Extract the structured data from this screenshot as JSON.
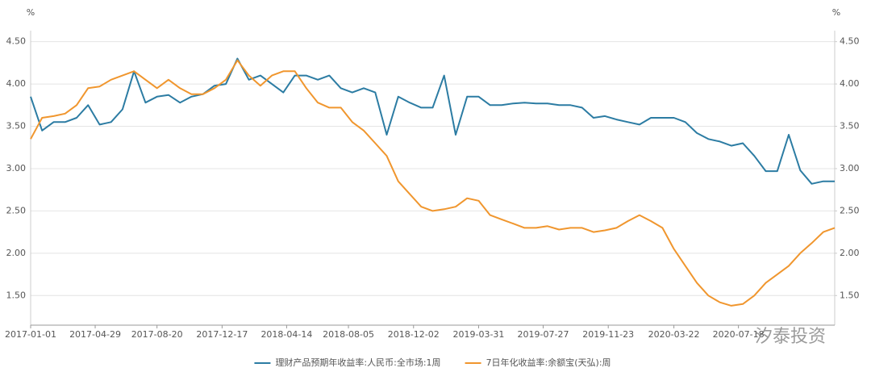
{
  "chart_data": {
    "type": "line",
    "y_label": "%",
    "y2_label": "%",
    "x": [
      "2017-01-01",
      "2017-01-22",
      "2017-02-12",
      "2017-03-05",
      "2017-03-26",
      "2017-04-16",
      "2017-05-07",
      "2017-05-28",
      "2017-06-18",
      "2017-07-09",
      "2017-07-30",
      "2017-08-20",
      "2017-09-10",
      "2017-10-01",
      "2017-10-22",
      "2017-11-12",
      "2017-12-03",
      "2017-12-24",
      "2018-01-14",
      "2018-02-04",
      "2018-02-25",
      "2018-03-18",
      "2018-04-08",
      "2018-04-29",
      "2018-05-20",
      "2018-06-10",
      "2018-07-01",
      "2018-07-22",
      "2018-08-12",
      "2018-09-02",
      "2018-09-23",
      "2018-10-14",
      "2018-11-04",
      "2018-11-25",
      "2018-12-16",
      "2019-01-06",
      "2019-01-27",
      "2019-02-17",
      "2019-03-10",
      "2019-03-31",
      "2019-04-21",
      "2019-05-12",
      "2019-06-02",
      "2019-06-23",
      "2019-07-14",
      "2019-08-04",
      "2019-08-25",
      "2019-09-15",
      "2019-10-06",
      "2019-10-27",
      "2019-11-17",
      "2019-12-08",
      "2019-12-29",
      "2020-01-19",
      "2020-02-09",
      "2020-03-01",
      "2020-03-22",
      "2020-04-12",
      "2020-05-03",
      "2020-05-24",
      "2020-06-14",
      "2020-07-05",
      "2020-07-26",
      "2020-08-16",
      "2020-09-06",
      "2020-09-27",
      "2020-10-18",
      "2020-11-08",
      "2020-11-29",
      "2020-12-20",
      "2021-01-10"
    ],
    "xlim": [
      "2017-01-01",
      "2021-01-10"
    ],
    "xticks": [
      "2017-01-01",
      "2017-04-29",
      "2017-08-20",
      "2017-12-17",
      "2018-04-14",
      "2018-08-05",
      "2018-12-02",
      "2019-03-31",
      "2019-07-27",
      "2019-11-23",
      "2020-03-22",
      "2020-07-18"
    ],
    "ylim": [
      1.15,
      4.63
    ],
    "yticks": [
      {
        "value": 1.5,
        "label": "1.50"
      },
      {
        "value": 2,
        "label": "2.00"
      },
      {
        "value": 2.5,
        "label": "2.50"
      },
      {
        "value": 3,
        "label": "3.00"
      },
      {
        "value": 3.5,
        "label": "3.50"
      },
      {
        "value": 4,
        "label": "4.00"
      },
      {
        "value": 4.5,
        "label": "4.50"
      }
    ],
    "y2lim": [
      1.15,
      4.63
    ],
    "y2ticks": [
      {
        "value": 1.5,
        "label": "1.50"
      },
      {
        "value": 2,
        "label": "2.00"
      },
      {
        "value": 2.5,
        "label": "2.50"
      },
      {
        "value": 3,
        "label": "3.00"
      },
      {
        "value": 3.5,
        "label": "3.50"
      },
      {
        "value": 4,
        "label": "4.00"
      },
      {
        "value": 4.5,
        "label": "4.50"
      }
    ],
    "grid": true,
    "legend": "bottom",
    "watermark": "汐泰投资",
    "series": [
      {
        "name": "理财产品预期年收益率:人民币:全市场:1周",
        "color": "#2c7ca3",
        "values": [
          3.85,
          3.45,
          3.55,
          3.55,
          3.6,
          3.75,
          3.52,
          3.55,
          3.7,
          4.15,
          3.78,
          3.85,
          3.87,
          3.78,
          3.85,
          3.88,
          3.98,
          4.0,
          4.3,
          4.05,
          4.1,
          4.0,
          3.9,
          4.1,
          4.1,
          4.05,
          4.1,
          3.95,
          3.9,
          3.95,
          3.9,
          3.4,
          3.85,
          3.78,
          3.72,
          3.72,
          4.1,
          3.4,
          3.85,
          3.85,
          3.75,
          3.75,
          3.77,
          3.78,
          3.77,
          3.77,
          3.75,
          3.75,
          3.72,
          3.6,
          3.62,
          3.58,
          3.55,
          3.52,
          3.6,
          3.6,
          3.6,
          3.55,
          3.42,
          3.35,
          3.32,
          3.27,
          3.3,
          3.15,
          2.97,
          2.97,
          3.4,
          2.98,
          2.82,
          2.85,
          2.85
        ]
      },
      {
        "name": "7日年化收益率:余额宝(天弘):周",
        "color": "#f0962e",
        "values": [
          3.35,
          3.6,
          3.62,
          3.65,
          3.75,
          3.95,
          3.97,
          4.05,
          4.1,
          4.15,
          4.05,
          3.95,
          4.05,
          3.95,
          3.88,
          3.88,
          3.95,
          4.05,
          4.28,
          4.1,
          3.98,
          4.1,
          4.15,
          4.15,
          3.95,
          3.78,
          3.72,
          3.72,
          3.55,
          3.45,
          3.3,
          3.15,
          2.85,
          2.7,
          2.55,
          2.5,
          2.52,
          2.55,
          2.65,
          2.62,
          2.45,
          2.4,
          2.35,
          2.3,
          2.3,
          2.32,
          2.28,
          2.3,
          2.3,
          2.25,
          2.27,
          2.3,
          2.38,
          2.45,
          2.38,
          2.3,
          2.05,
          1.85,
          1.65,
          1.5,
          1.42,
          1.38,
          1.4,
          1.5,
          1.65,
          1.75,
          1.85,
          2.0,
          2.12,
          2.25,
          2.3
        ]
      }
    ]
  }
}
